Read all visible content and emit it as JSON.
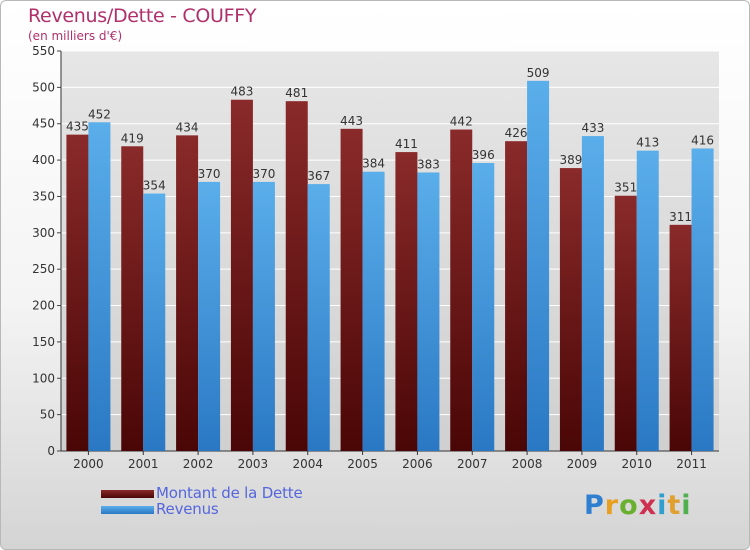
{
  "chart_data": {
    "type": "bar",
    "title": "Revenus/Dette - COUFFY",
    "subtitle": "(en milliers d'€)",
    "categories": [
      "2000",
      "2001",
      "2002",
      "2003",
      "2004",
      "2005",
      "2006",
      "2007",
      "2008",
      "2009",
      "2010",
      "2011"
    ],
    "series": [
      {
        "name": "Montant de la Dette",
        "color": "#7a2222",
        "values": [
          435,
          419,
          434,
          483,
          481,
          443,
          411,
          442,
          426,
          389,
          351,
          311
        ]
      },
      {
        "name": "Revenus",
        "color": "#4aa0e0",
        "values": [
          452,
          354,
          370,
          370,
          367,
          384,
          383,
          396,
          509,
          433,
          413,
          416
        ]
      }
    ],
    "ylim": [
      0,
      550
    ],
    "yticks": [
      0,
      50,
      100,
      150,
      200,
      250,
      300,
      350,
      400,
      450,
      500,
      550
    ],
    "grid": true,
    "legend": "bottom-left"
  },
  "brand": {
    "letters": [
      "P",
      "r",
      "o",
      "x",
      "i",
      "t",
      "i"
    ]
  }
}
